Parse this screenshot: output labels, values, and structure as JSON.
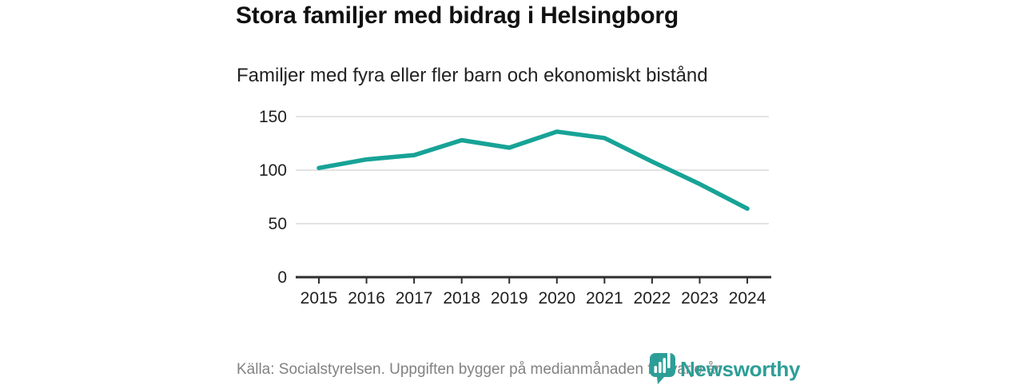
{
  "header": {
    "title": "Stora familjer med bidrag i Helsingborg",
    "subtitle": "Familjer med fyra eller fler barn och ekonomiskt bistånd"
  },
  "footer": {
    "source_text": "Källa: Socialstyrelsen. Uppgiften bygger på medianmånaden för varje år",
    "brand": "Newsworthy"
  },
  "colors": {
    "accent": "#17a396",
    "logo_pin": "#2d9e97",
    "logo_text": "#2d9e97",
    "grid": "#e3e3e3",
    "axis": "#2e2e2e",
    "tick_text": "#1f1f1f",
    "muted_text": "#828282"
  },
  "chart_data": {
    "type": "line",
    "title": "Stora familjer med bidrag i Helsingborg",
    "subtitle": "Familjer med fyra eller fler barn och ekonomiskt bistånd",
    "categories": [
      "2015",
      "2016",
      "2017",
      "2018",
      "2019",
      "2020",
      "2021",
      "2022",
      "2023",
      "2024"
    ],
    "series": [
      {
        "name": "Familjer med fyra eller fler barn och ekonomiskt bistånd",
        "values": [
          102,
          110,
          114,
          128,
          121,
          136,
          130,
          108,
          87,
          64
        ]
      }
    ],
    "xlabel": "",
    "ylabel": "",
    "yticks": [
      0,
      50,
      100,
      150
    ],
    "ylim": [
      0,
      160
    ],
    "grid": "horizontal",
    "legend": "none",
    "line_color": "#17a396"
  }
}
